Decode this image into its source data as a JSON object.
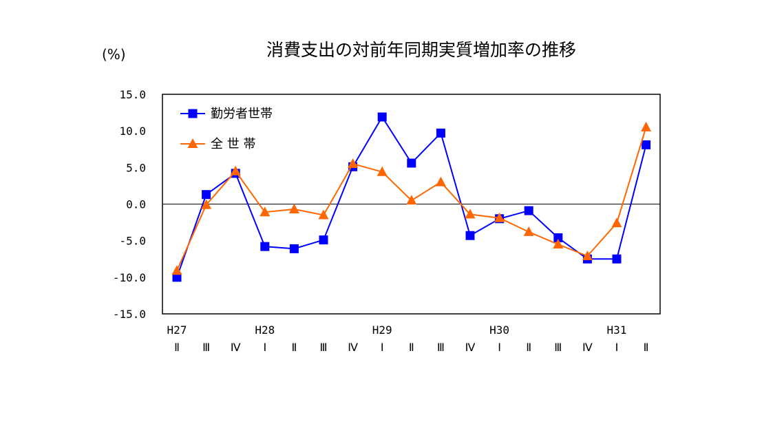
{
  "chart_data": {
    "type": "line",
    "title": "消費支出の対前年同期実質増加率の推移",
    "ylabel": "(%)",
    "ylim": [
      -15,
      15
    ],
    "yticks": [
      15,
      10,
      5,
      0,
      -5,
      -10,
      -15
    ],
    "ytick_labels": [
      "15.0",
      "10.0",
      "5.0",
      "0.0",
      "-5.0",
      "-10.0",
      "-15.0"
    ],
    "year_labels": [
      "H27",
      "",
      "",
      "H28",
      "",
      "",
      "",
      "H29",
      "",
      "",
      "",
      "H30",
      "",
      "",
      "",
      "H31",
      ""
    ],
    "categories": [
      "Ⅱ",
      "Ⅲ",
      "Ⅳ",
      "Ⅰ",
      "Ⅱ",
      "Ⅲ",
      "Ⅳ",
      "Ⅰ",
      "Ⅱ",
      "Ⅲ",
      "Ⅳ",
      "Ⅰ",
      "Ⅱ",
      "Ⅲ",
      "Ⅳ",
      "Ⅰ",
      "Ⅱ"
    ],
    "legend_position": "top-left",
    "grid": false,
    "series": [
      {
        "name": "勤労者世帯",
        "color": "#0000ff",
        "marker": "square",
        "values": [
          -10.0,
          1.3,
          4.2,
          -5.8,
          -6.1,
          -4.9,
          5.1,
          11.9,
          5.6,
          9.7,
          -4.3,
          -2.0,
          -0.9,
          -4.6,
          -7.5,
          -7.5,
          8.1
        ]
      },
      {
        "name": "全 世 帯",
        "color": "#ff6600",
        "marker": "triangle",
        "values": [
          -9.1,
          -0.1,
          4.5,
          -1.1,
          -0.7,
          -1.5,
          5.5,
          4.4,
          0.5,
          3.0,
          -1.4,
          -1.9,
          -3.8,
          -5.5,
          -7.1,
          -2.6,
          10.5
        ]
      }
    ]
  }
}
